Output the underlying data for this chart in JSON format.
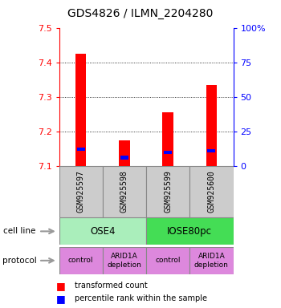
{
  "title": "GDS4826 / ILMN_2204280",
  "samples": [
    "GSM925597",
    "GSM925598",
    "GSM925599",
    "GSM925600"
  ],
  "red_values": [
    7.425,
    7.175,
    7.255,
    7.335
  ],
  "blue_values": [
    7.145,
    7.12,
    7.135,
    7.14
  ],
  "y_min": 7.1,
  "y_max": 7.5,
  "y_ticks": [
    7.1,
    7.2,
    7.3,
    7.4,
    7.5
  ],
  "right_y_ticks": [
    0,
    25,
    50,
    75,
    100
  ],
  "right_y_labels": [
    "0",
    "25",
    "50",
    "75",
    "100%"
  ],
  "cell_line_0_label": "OSE4",
  "cell_line_1_label": "IOSE80pc",
  "cell_line_0_color": "#aaeebb",
  "cell_line_1_color": "#44dd55",
  "protocol_labels": [
    "control",
    "ARID1A\ndepletion",
    "control",
    "ARID1A\ndepletion"
  ],
  "protocol_color": "#dd88dd",
  "sample_box_color": "#cccccc",
  "legend_red_label": "transformed count",
  "legend_blue_label": "percentile rank within the sample",
  "bar_width": 0.25
}
